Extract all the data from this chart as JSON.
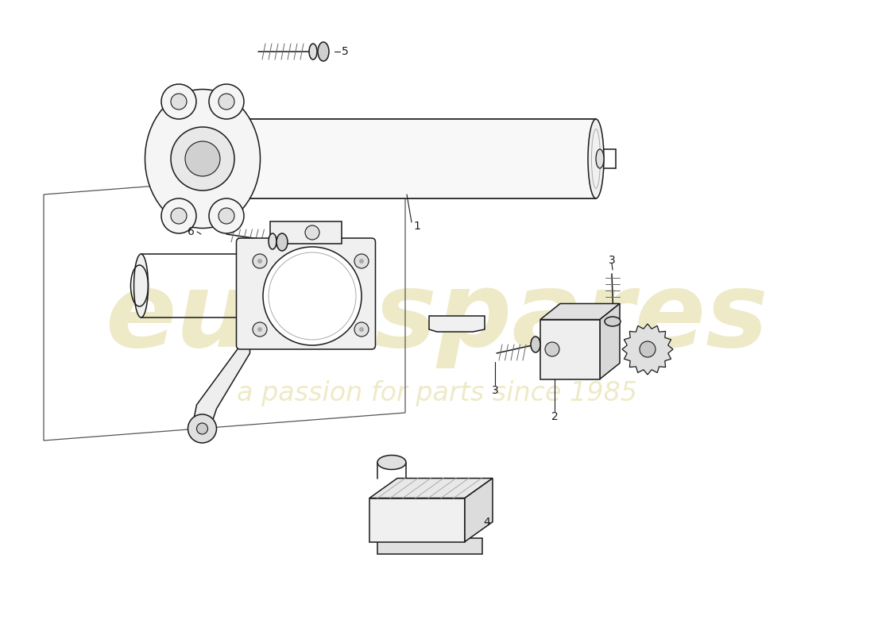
{
  "background_color": "#ffffff",
  "line_color": "#1a1a1a",
  "watermark_text1": "eurospares",
  "watermark_text2": "a passion for parts since 1985",
  "watermark_color": "#d4c870",
  "watermark_alpha": 0.38,
  "part_numbers": [
    "1",
    "2",
    "3",
    "3",
    "4",
    "5",
    "6"
  ],
  "figsize": [
    11.0,
    8.0
  ],
  "dpi": 100
}
